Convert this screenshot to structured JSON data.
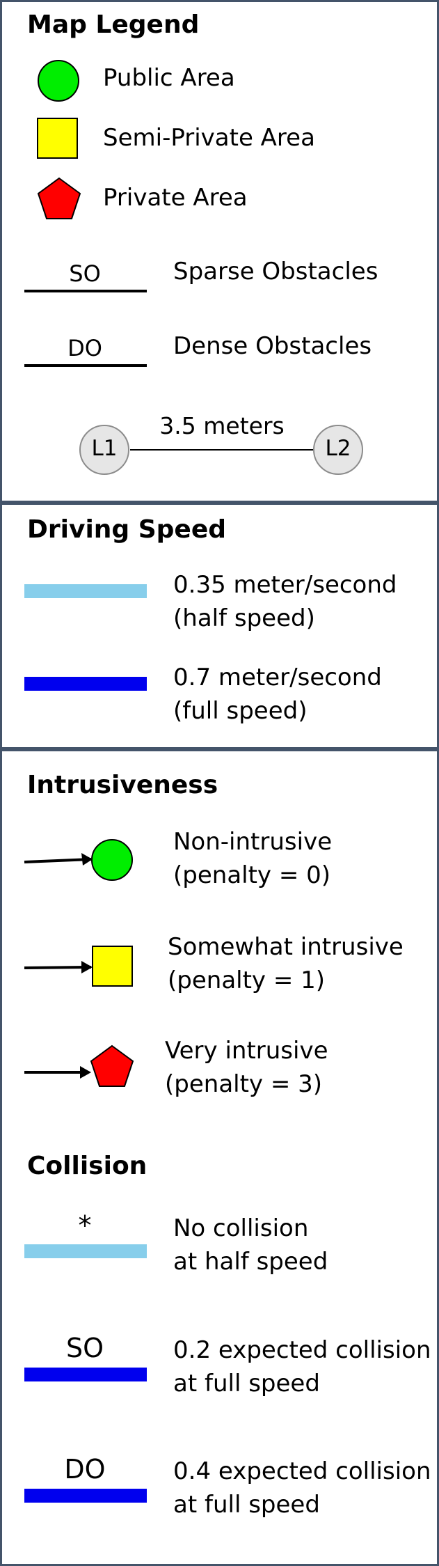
{
  "legend": {
    "title": "Map Legend",
    "public_label": "Public Area",
    "semi_private_label": "Semi-Private Area",
    "private_label": "Private Area",
    "so_code": "SO",
    "so_label": "Sparse Obstacles",
    "do_code": "DO",
    "do_label": "Dense Obstacles",
    "l1": "L1",
    "l2": "L2",
    "distance_label": "3.5 meters"
  },
  "speed": {
    "title": "Driving Speed",
    "half_line1": "0.35 meter/second",
    "half_line2": "(half speed)",
    "full_line1": "0.7 meter/second",
    "full_line2": "(full speed)"
  },
  "intrusiveness": {
    "title": "Intrusiveness",
    "non_line1": "Non-intrusive",
    "non_line2": "(penalty = 0)",
    "some_line1": "Somewhat intrusive",
    "some_line2": "(penalty = 1)",
    "very_line1": "Very intrusive",
    "very_line2": "(penalty = 3)"
  },
  "collision": {
    "title": "Collision",
    "star": "*",
    "none_line1": "No collision",
    "none_line2": "at half speed",
    "so_code": "SO",
    "so_line1": "0.2 expected collision",
    "so_line2": "at full speed",
    "do_code": "DO",
    "do_line1": "0.4 expected collision",
    "do_line2": "at full speed"
  },
  "colors": {
    "public": "#00ee00",
    "semi_private": "#ffff00",
    "private": "#ff0000",
    "half_speed": "#87ceeb",
    "full_speed": "#0000ee",
    "node_fill": "#e6e6e6",
    "border": "#44546a"
  }
}
